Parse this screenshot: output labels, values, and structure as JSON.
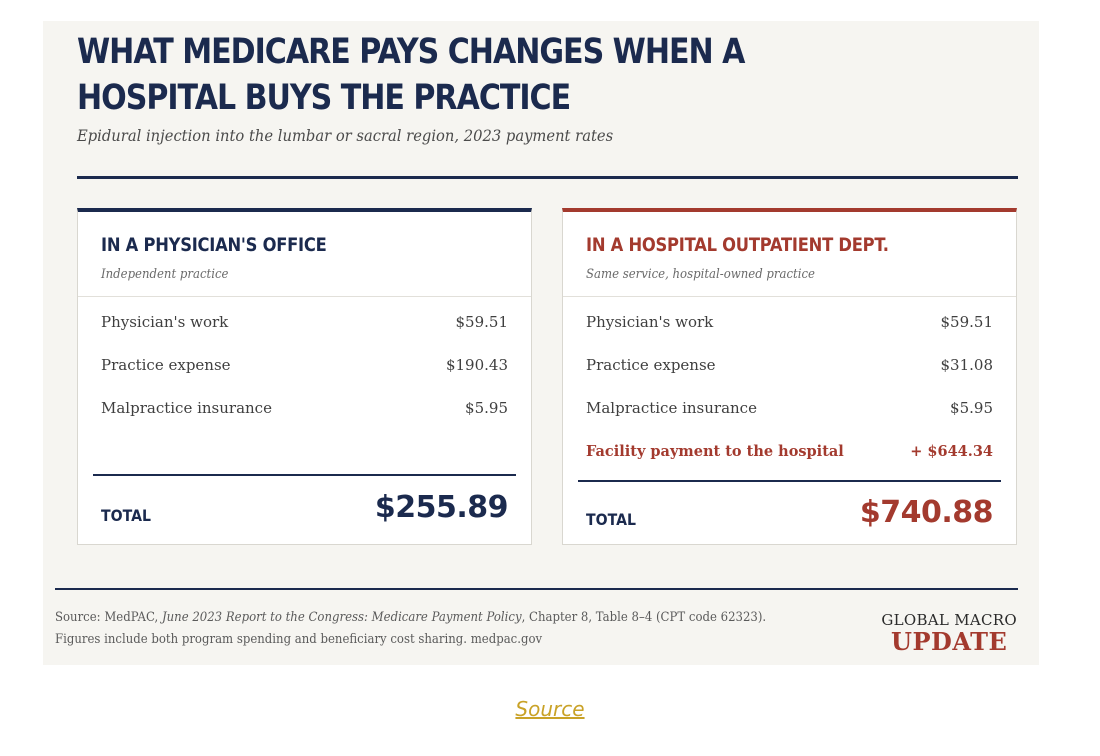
{
  "header": {
    "title": "WHAT MEDICARE PAYS CHANGES WHEN A HOSPITAL BUYS THE PRACTICE",
    "subtitle": "Epidural injection into the lumbar or sacral region, 2023 payment rates"
  },
  "office": {
    "title": "IN A PHYSICIAN'S OFFICE",
    "subtitle": "Independent practice",
    "rows": [
      {
        "label": "Physician's work",
        "value": "$59.51"
      },
      {
        "label": "Practice expense",
        "value": "$190.43"
      },
      {
        "label": "Malpractice insurance",
        "value": "$5.95"
      }
    ],
    "total_label": "TOTAL",
    "total_value": "$255.89"
  },
  "hospital": {
    "title": "IN A HOSPITAL OUTPATIENT DEPT.",
    "subtitle": "Same service, hospital-owned practice",
    "rows": [
      {
        "label": "Physician's work",
        "value": "$59.51"
      },
      {
        "label": "Practice expense",
        "value": "$31.08"
      },
      {
        "label": "Malpractice insurance",
        "value": "$5.95"
      },
      {
        "label": "Facility payment to the hospital",
        "value": "+ $644.34"
      }
    ],
    "total_label": "TOTAL",
    "total_value": "$740.88"
  },
  "footer": {
    "source_prefix": "Source: MedPAC, ",
    "source_report": "June 2023 Report to the Congress: Medicare Payment Policy",
    "source_suffix": ", Chapter 8, Table 8–4 (CPT code 62323). Figures include both program spending and beneficiary cost sharing. medpac.gov",
    "brand_top": "GLOBAL MACRO",
    "brand_bottom": "UPDATE"
  },
  "source_link": "Source",
  "colors": {
    "navy": "#1b2a4e",
    "red": "#a33a2e",
    "link": "#c9a227",
    "panel": "#f6f5f1"
  }
}
